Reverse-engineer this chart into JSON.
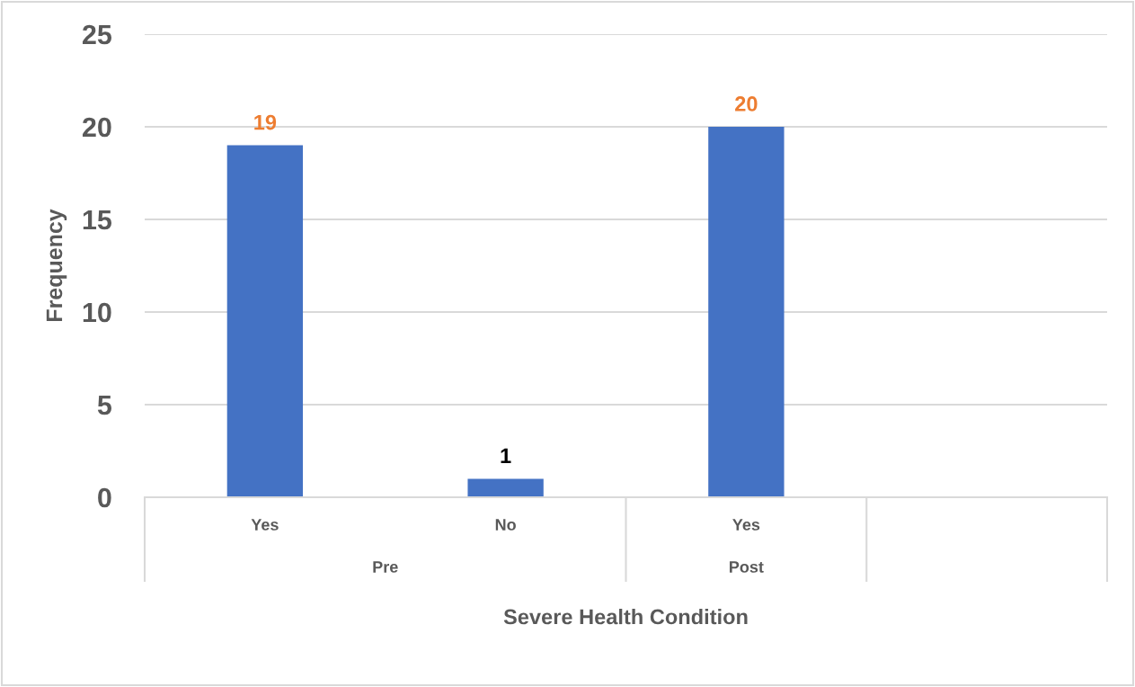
{
  "chart_data": {
    "type": "bar",
    "categories": [
      "Yes",
      "No",
      "Yes",
      null
    ],
    "values": [
      19,
      1,
      20,
      null
    ],
    "color": "#4472c4",
    "xlabel": "Severe Health Condition",
    "ylabel": "Frequency",
    "ylim": [
      0,
      25
    ],
    "yticks": [
      0,
      5,
      10,
      15,
      20,
      25
    ],
    "grid": "y",
    "data_labels": true,
    "annotations": [
      "Pre",
      "Post"
    ]
  }
}
